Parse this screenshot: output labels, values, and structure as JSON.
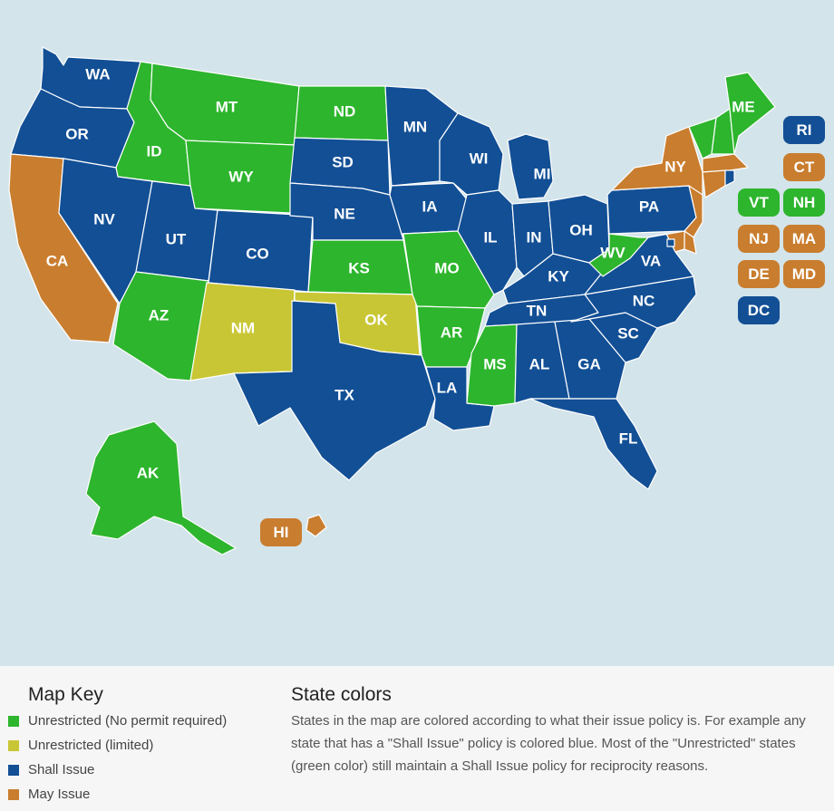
{
  "colors": {
    "unrestricted": "#2db52d",
    "limited": "#c9c635",
    "shall": "#124f95",
    "may": "#c97d2e",
    "water": "#d3e4ea"
  },
  "states": [
    {
      "id": "WA",
      "policy": "shall"
    },
    {
      "id": "OR",
      "policy": "shall"
    },
    {
      "id": "CA",
      "policy": "may"
    },
    {
      "id": "ID",
      "policy": "unrestricted"
    },
    {
      "id": "NV",
      "policy": "shall"
    },
    {
      "id": "MT",
      "policy": "unrestricted"
    },
    {
      "id": "WY",
      "policy": "unrestricted"
    },
    {
      "id": "UT",
      "policy": "shall"
    },
    {
      "id": "AZ",
      "policy": "unrestricted"
    },
    {
      "id": "CO",
      "policy": "shall"
    },
    {
      "id": "NM",
      "policy": "limited"
    },
    {
      "id": "ND",
      "policy": "unrestricted"
    },
    {
      "id": "SD",
      "policy": "shall"
    },
    {
      "id": "NE",
      "policy": "shall"
    },
    {
      "id": "KS",
      "policy": "unrestricted"
    },
    {
      "id": "OK",
      "policy": "limited"
    },
    {
      "id": "TX",
      "policy": "shall"
    },
    {
      "id": "MN",
      "policy": "shall"
    },
    {
      "id": "IA",
      "policy": "shall"
    },
    {
      "id": "MO",
      "policy": "unrestricted"
    },
    {
      "id": "AR",
      "policy": "unrestricted"
    },
    {
      "id": "LA",
      "policy": "shall"
    },
    {
      "id": "WI",
      "policy": "shall"
    },
    {
      "id": "IL",
      "policy": "shall"
    },
    {
      "id": "MI",
      "policy": "shall"
    },
    {
      "id": "IN",
      "policy": "shall"
    },
    {
      "id": "OH",
      "policy": "shall"
    },
    {
      "id": "KY",
      "policy": "shall"
    },
    {
      "id": "TN",
      "policy": "shall"
    },
    {
      "id": "MS",
      "policy": "unrestricted"
    },
    {
      "id": "AL",
      "policy": "shall"
    },
    {
      "id": "GA",
      "policy": "shall"
    },
    {
      "id": "FL",
      "policy": "shall"
    },
    {
      "id": "SC",
      "policy": "shall"
    },
    {
      "id": "NC",
      "policy": "shall"
    },
    {
      "id": "VA",
      "policy": "shall"
    },
    {
      "id": "WV",
      "policy": "unrestricted"
    },
    {
      "id": "PA",
      "policy": "shall"
    },
    {
      "id": "NY",
      "policy": "may"
    },
    {
      "id": "VT",
      "policy": "unrestricted"
    },
    {
      "id": "NH",
      "policy": "unrestricted"
    },
    {
      "id": "ME",
      "policy": "unrestricted"
    },
    {
      "id": "MA",
      "policy": "may"
    },
    {
      "id": "CT",
      "policy": "may"
    },
    {
      "id": "RI",
      "policy": "shall"
    },
    {
      "id": "NJ",
      "policy": "may"
    },
    {
      "id": "DE",
      "policy": "may"
    },
    {
      "id": "MD",
      "policy": "may"
    },
    {
      "id": "DC",
      "policy": "shall"
    },
    {
      "id": "AK",
      "policy": "unrestricted"
    },
    {
      "id": "HI",
      "policy": "may"
    }
  ],
  "badges": [
    {
      "id": "RI",
      "policy": "shall"
    },
    {
      "id": "CT",
      "policy": "may"
    },
    {
      "id": "VT",
      "policy": "unrestricted"
    },
    {
      "id": "NH",
      "policy": "unrestricted"
    },
    {
      "id": "NJ",
      "policy": "may"
    },
    {
      "id": "MA",
      "policy": "may"
    },
    {
      "id": "DE",
      "policy": "may"
    },
    {
      "id": "MD",
      "policy": "may"
    },
    {
      "id": "DC",
      "policy": "shall"
    },
    {
      "id": "HI",
      "policy": "may"
    }
  ],
  "legend": {
    "title": "Map Key",
    "items": [
      {
        "label": "Unrestricted (No permit required)",
        "policy": "unrestricted"
      },
      {
        "label": "Unrestricted (limited)",
        "policy": "limited"
      },
      {
        "label": "Shall Issue",
        "policy": "shall"
      },
      {
        "label": "May Issue",
        "policy": "may"
      }
    ]
  },
  "description": {
    "title": "State colors",
    "text": "States in the map are colored according to what their issue policy is. For example any state that has a \"Shall Issue\" policy is colored blue. Most of the \"Unrestricted\" states (green color) still maintain a Shall Issue policy for reciprocity reasons."
  }
}
